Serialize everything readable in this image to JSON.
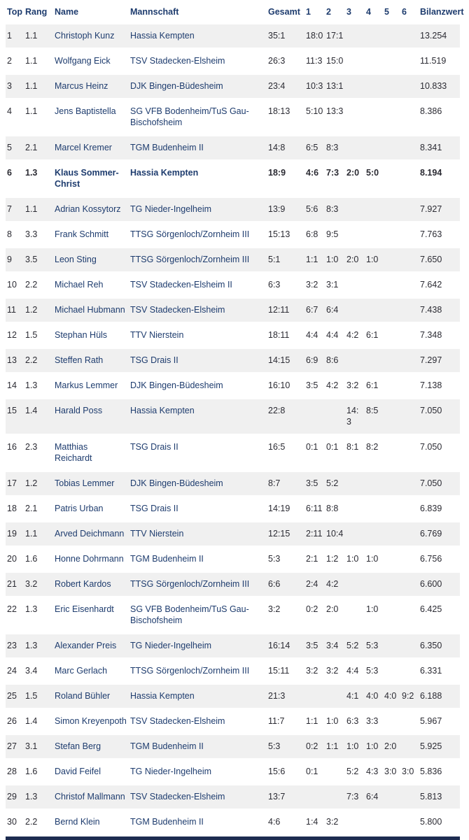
{
  "colors": {
    "header_text": "#1e3c6e",
    "link_text": "#1e3c6e",
    "body_text": "#2b2b33",
    "row_alt_bg": "#f0f0f0",
    "bottom_bar": "#1d2c50"
  },
  "table": {
    "columns": [
      "Top",
      "Rang",
      "Name",
      "Mannschaft",
      "Gesamt",
      "1",
      "2",
      "3",
      "4",
      "5",
      "6",
      "Bilanzwert"
    ],
    "rows": [
      {
        "top": "1",
        "rang": "1.1",
        "name": "Christoph Kunz",
        "team": "Hassia Kempten",
        "gesamt": "35:1",
        "c1": "18:0",
        "c2": "17:1",
        "c3": "",
        "c4": "",
        "c5": "",
        "c6": "",
        "bilanz": "13.254",
        "bold": false
      },
      {
        "top": "2",
        "rang": "1.1",
        "name": "Wolfgang Eick",
        "team": "TSV Stadecken-Elsheim",
        "gesamt": "26:3",
        "c1": "11:3",
        "c2": "15:0",
        "c3": "",
        "c4": "",
        "c5": "",
        "c6": "",
        "bilanz": "11.519",
        "bold": false
      },
      {
        "top": "3",
        "rang": "1.1",
        "name": "Marcus Heinz",
        "team": "DJK Bingen-Büdesheim",
        "gesamt": "23:4",
        "c1": "10:3",
        "c2": "13:1",
        "c3": "",
        "c4": "",
        "c5": "",
        "c6": "",
        "bilanz": "10.833",
        "bold": false
      },
      {
        "top": "4",
        "rang": "1.1",
        "name": "Jens Baptistella",
        "team": "SG VFB Bodenheim/TuS Gau-Bischofsheim",
        "gesamt": "18:13",
        "c1": "5:10",
        "c2": "13:3",
        "c3": "",
        "c4": "",
        "c5": "",
        "c6": "",
        "bilanz": "8.386",
        "bold": false
      },
      {
        "top": "5",
        "rang": "2.1",
        "name": "Marcel Kremer",
        "team": "TGM Budenheim II",
        "gesamt": "14:8",
        "c1": "6:5",
        "c2": "8:3",
        "c3": "",
        "c4": "",
        "c5": "",
        "c6": "",
        "bilanz": "8.341",
        "bold": false
      },
      {
        "top": "6",
        "rang": "1.3",
        "name": "Klaus Sommer-Christ",
        "team": "Hassia Kempten",
        "gesamt": "18:9",
        "c1": "4:6",
        "c2": "7:3",
        "c3": "2:0",
        "c4": "5:0",
        "c5": "",
        "c6": "",
        "bilanz": "8.194",
        "bold": true
      },
      {
        "top": "7",
        "rang": "1.1",
        "name": "Adrian Kossytorz",
        "team": "TG Nieder-Ingelheim",
        "gesamt": "13:9",
        "c1": "5:6",
        "c2": "8:3",
        "c3": "",
        "c4": "",
        "c5": "",
        "c6": "",
        "bilanz": "7.927",
        "bold": false
      },
      {
        "top": "8",
        "rang": "3.3",
        "name": "Frank Schmitt",
        "team": "TTSG Sörgenloch/Zornheim III",
        "gesamt": "15:13",
        "c1": "6:8",
        "c2": "9:5",
        "c3": "",
        "c4": "",
        "c5": "",
        "c6": "",
        "bilanz": "7.763",
        "bold": false
      },
      {
        "top": "9",
        "rang": "3.5",
        "name": "Leon Sting",
        "team": "TTSG Sörgenloch/Zornheim III",
        "gesamt": "5:1",
        "c1": "1:1",
        "c2": "1:0",
        "c3": "2:0",
        "c4": "1:0",
        "c5": "",
        "c6": "",
        "bilanz": "7.650",
        "bold": false
      },
      {
        "top": "10",
        "rang": "2.2",
        "name": "Michael Reh",
        "team": "TSV Stadecken-Elsheim II",
        "gesamt": "6:3",
        "c1": "3:2",
        "c2": "3:1",
        "c3": "",
        "c4": "",
        "c5": "",
        "c6": "",
        "bilanz": "7.642",
        "bold": false
      },
      {
        "top": "11",
        "rang": "1.2",
        "name": "Michael Hubmann",
        "team": "TSV Stadecken-Elsheim",
        "gesamt": "12:11",
        "c1": "6:7",
        "c2": "6:4",
        "c3": "",
        "c4": "",
        "c5": "",
        "c6": "",
        "bilanz": "7.438",
        "bold": false
      },
      {
        "top": "12",
        "rang": "1.5",
        "name": "Stephan Hüls",
        "team": "TTV Nierstein",
        "gesamt": "18:11",
        "c1": "4:4",
        "c2": "4:4",
        "c3": "4:2",
        "c4": "6:1",
        "c5": "",
        "c6": "",
        "bilanz": "7.348",
        "bold": false
      },
      {
        "top": "13",
        "rang": "2.2",
        "name": "Steffen Rath",
        "team": "TSG Drais II",
        "gesamt": "14:15",
        "c1": "6:9",
        "c2": "8:6",
        "c3": "",
        "c4": "",
        "c5": "",
        "c6": "",
        "bilanz": "7.297",
        "bold": false
      },
      {
        "top": "14",
        "rang": "1.3",
        "name": "Markus Lemmer",
        "team": "DJK Bingen-Büdesheim",
        "gesamt": "16:10",
        "c1": "3:5",
        "c2": "4:2",
        "c3": "3:2",
        "c4": "6:1",
        "c5": "",
        "c6": "",
        "bilanz": "7.138",
        "bold": false
      },
      {
        "top": "15",
        "rang": "1.4",
        "name": "Harald Poss",
        "team": "Hassia Kempten",
        "gesamt": "22:8",
        "c1": "",
        "c2": "",
        "c3": "14:3",
        "c4": "8:5",
        "c5": "",
        "c6": "",
        "bilanz": "7.050",
        "bold": false
      },
      {
        "top": "16",
        "rang": "2.3",
        "name": "Matthias Reichardt",
        "team": "TSG Drais II",
        "gesamt": "16:5",
        "c1": "0:1",
        "c2": "0:1",
        "c3": "8:1",
        "c4": "8:2",
        "c5": "",
        "c6": "",
        "bilanz": "7.050",
        "bold": false
      },
      {
        "top": "17",
        "rang": "1.2",
        "name": "Tobias Lemmer",
        "team": "DJK Bingen-Büdesheim",
        "gesamt": "8:7",
        "c1": "3:5",
        "c2": "5:2",
        "c3": "",
        "c4": "",
        "c5": "",
        "c6": "",
        "bilanz": "7.050",
        "bold": false
      },
      {
        "top": "18",
        "rang": "2.1",
        "name": "Patris Urban",
        "team": "TSG Drais II",
        "gesamt": "14:19",
        "c1": "6:11",
        "c2": "8:8",
        "c3": "",
        "c4": "",
        "c5": "",
        "c6": "",
        "bilanz": "6.839",
        "bold": false
      },
      {
        "top": "19",
        "rang": "1.1",
        "name": "Arved Deichmann",
        "team": "TTV Nierstein",
        "gesamt": "12:15",
        "c1": "2:11",
        "c2": "10:4",
        "c3": "",
        "c4": "",
        "c5": "",
        "c6": "",
        "bilanz": "6.769",
        "bold": false
      },
      {
        "top": "20",
        "rang": "1.6",
        "name": "Honne Dohrmann",
        "team": "TGM Budenheim II",
        "gesamt": "5:3",
        "c1": "2:1",
        "c2": "1:2",
        "c3": "1:0",
        "c4": "1:0",
        "c5": "",
        "c6": "",
        "bilanz": "6.756",
        "bold": false
      },
      {
        "top": "21",
        "rang": "3.2",
        "name": "Robert Kardos",
        "team": "TTSG Sörgenloch/Zornheim III",
        "gesamt": "6:6",
        "c1": "2:4",
        "c2": "4:2",
        "c3": "",
        "c4": "",
        "c5": "",
        "c6": "",
        "bilanz": "6.600",
        "bold": false
      },
      {
        "top": "22",
        "rang": "1.3",
        "name": "Eric Eisenhardt",
        "team": "SG VFB Bodenheim/TuS Gau-Bischofsheim",
        "gesamt": "3:2",
        "c1": "0:2",
        "c2": "2:0",
        "c3": "",
        "c4": "1:0",
        "c5": "",
        "c6": "",
        "bilanz": "6.425",
        "bold": false
      },
      {
        "top": "23",
        "rang": "1.3",
        "name": "Alexander Preis",
        "team": "TG Nieder-Ingelheim",
        "gesamt": "16:14",
        "c1": "3:5",
        "c2": "3:4",
        "c3": "5:2",
        "c4": "5:3",
        "c5": "",
        "c6": "",
        "bilanz": "6.350",
        "bold": false
      },
      {
        "top": "24",
        "rang": "3.4",
        "name": "Marc Gerlach",
        "team": "TTSG Sörgenloch/Zornheim III",
        "gesamt": "15:11",
        "c1": "3:2",
        "c2": "3:2",
        "c3": "4:4",
        "c4": "5:3",
        "c5": "",
        "c6": "",
        "bilanz": "6.331",
        "bold": false
      },
      {
        "top": "25",
        "rang": "1.5",
        "name": "Roland Bühler",
        "team": "Hassia Kempten",
        "gesamt": "21:3",
        "c1": "",
        "c2": "",
        "c3": "4:1",
        "c4": "4:0",
        "c5": "4:0",
        "c6": "9:2",
        "bilanz": "6.188",
        "bold": false
      },
      {
        "top": "26",
        "rang": "1.4",
        "name": "Simon Kreyenpoth",
        "team": "TSV Stadecken-Elsheim",
        "gesamt": "11:7",
        "c1": "1:1",
        "c2": "1:0",
        "c3": "6:3",
        "c4": "3:3",
        "c5": "",
        "c6": "",
        "bilanz": "5.967",
        "bold": false
      },
      {
        "top": "27",
        "rang": "3.1",
        "name": "Stefan Berg",
        "team": "TGM Budenheim II",
        "gesamt": "5:3",
        "c1": "0:2",
        "c2": "1:1",
        "c3": "1:0",
        "c4": "1:0",
        "c5": "2:0",
        "c6": "",
        "bilanz": "5.925",
        "bold": false
      },
      {
        "top": "28",
        "rang": "1.6",
        "name": "David Feifel",
        "team": "TG Nieder-Ingelheim",
        "gesamt": "15:6",
        "c1": "0:1",
        "c2": "",
        "c3": "5:2",
        "c4": "4:3",
        "c5": "3:0",
        "c6": "3:0",
        "bilanz": "5.836",
        "bold": false
      },
      {
        "top": "29",
        "rang": "1.3",
        "name": "Christof Mallmann",
        "team": "TSV Stadecken-Elsheim",
        "gesamt": "13:7",
        "c1": "",
        "c2": "",
        "c3": "7:3",
        "c4": "6:4",
        "c5": "",
        "c6": "",
        "bilanz": "5.813",
        "bold": false
      },
      {
        "top": "30",
        "rang": "2.2",
        "name": "Bernd Klein",
        "team": "TGM Budenheim II",
        "gesamt": "4:6",
        "c1": "1:4",
        "c2": "3:2",
        "c3": "",
        "c4": "",
        "c5": "",
        "c6": "",
        "bilanz": "5.800",
        "bold": false
      }
    ]
  }
}
